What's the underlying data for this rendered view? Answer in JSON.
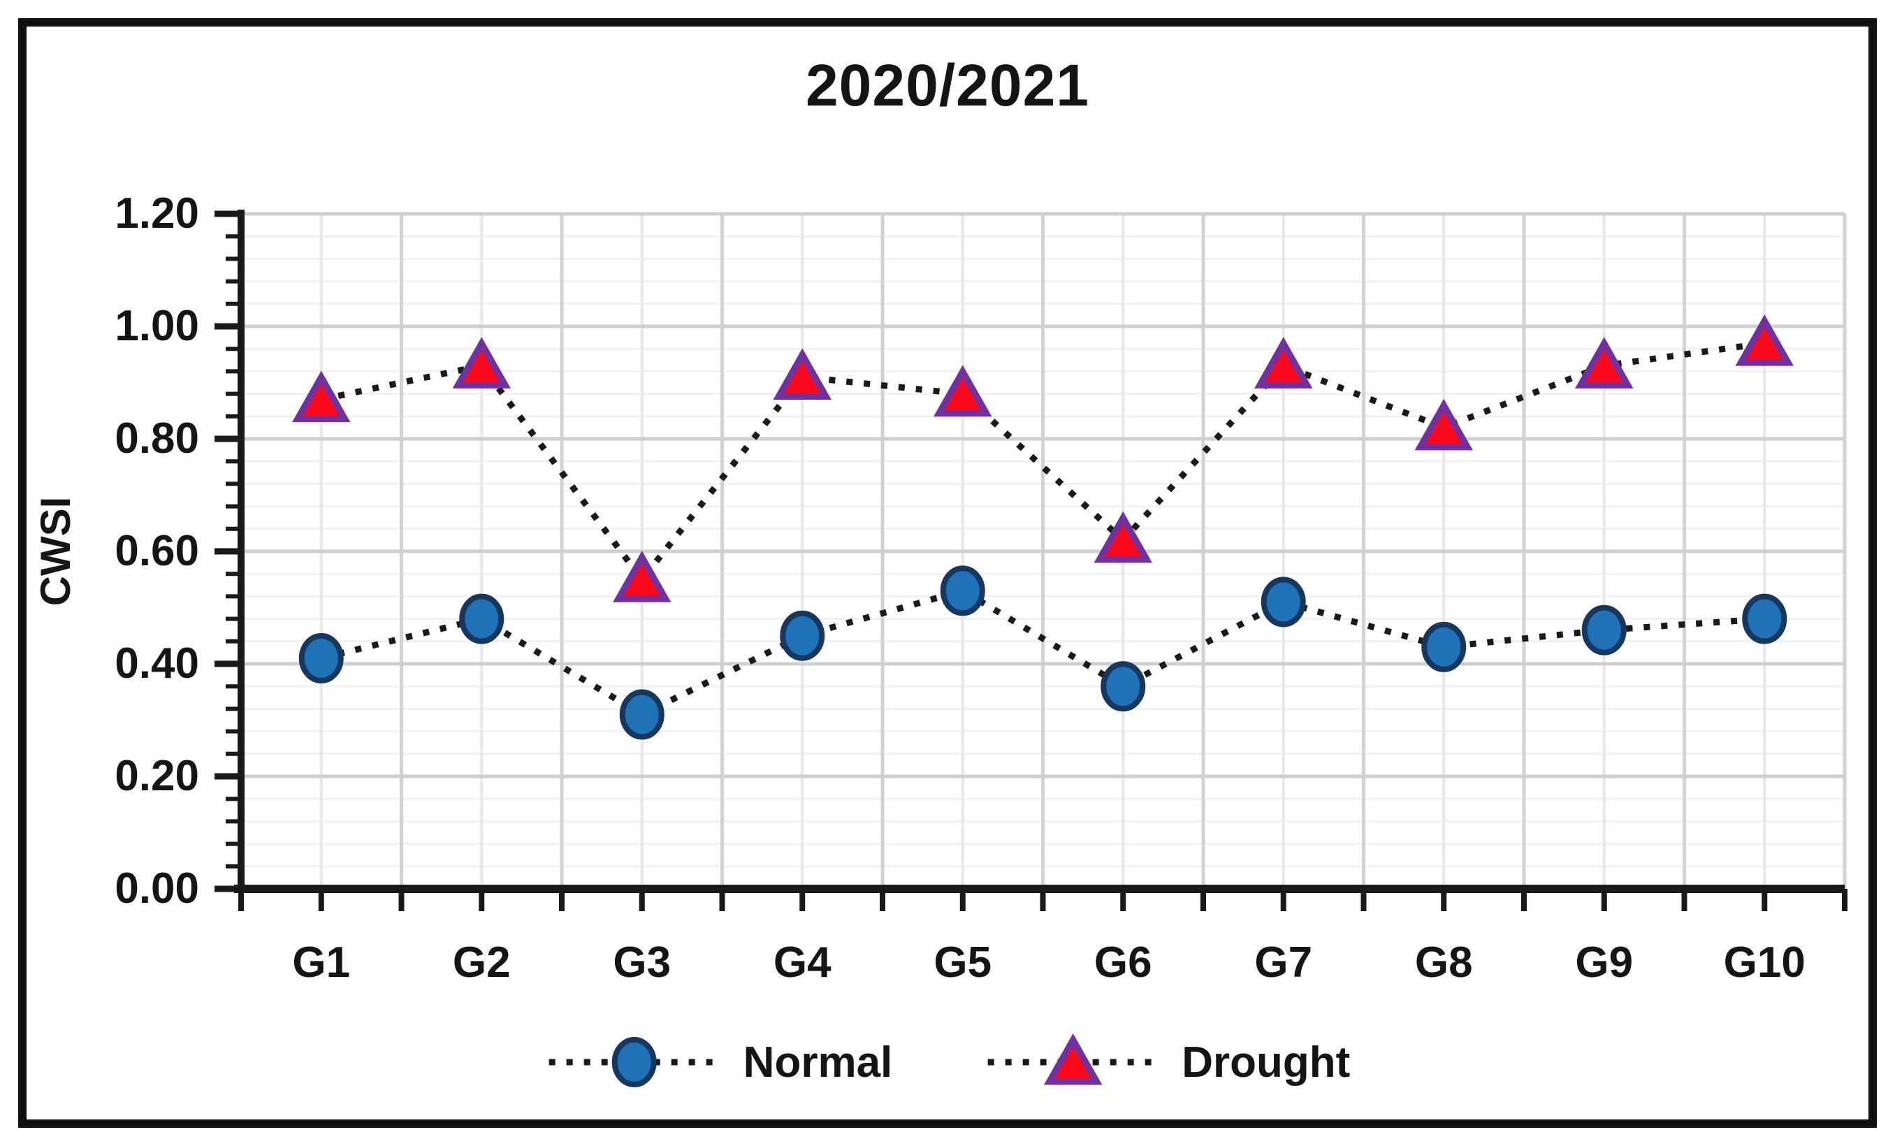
{
  "title": "2020/2021",
  "chart_data": {
    "type": "line",
    "title": "2020/2021",
    "categories": [
      "G1",
      "G2",
      "G3",
      "G4",
      "G5",
      "G6",
      "G7",
      "G8",
      "G9",
      "G10"
    ],
    "series": [
      {
        "name": "Normal",
        "marker": "circle",
        "values": [
          0.41,
          0.48,
          0.31,
          0.45,
          0.53,
          0.36,
          0.51,
          0.43,
          0.46,
          0.48
        ]
      },
      {
        "name": "Drought",
        "marker": "triangle",
        "values": [
          0.87,
          0.93,
          0.55,
          0.91,
          0.88,
          0.62,
          0.93,
          0.82,
          0.93,
          0.97
        ]
      }
    ],
    "ylabel": "CWSI",
    "xlabel": "",
    "ylim": [
      0,
      1.2
    ],
    "y_major_step": 0.2,
    "y_minor_step": 0.04,
    "y_tick_labels": [
      "0.00",
      "0.20",
      "0.40",
      "0.60",
      "0.80",
      "1.00",
      "1.20"
    ],
    "grid": "major+minor",
    "line_style": "dotted",
    "legend_position": "bottom"
  },
  "legend": {
    "items": [
      {
        "label": "Normal",
        "marker": "circle"
      },
      {
        "label": "Drought",
        "marker": "triangle"
      }
    ]
  },
  "colors": {
    "text": "#151515",
    "axis": "#1a1a1a",
    "dotted_line": "#1a1a1a",
    "grid_major_h": "#cfcfcf",
    "grid_minor_h": "#f1f1f1",
    "grid_major_v": "#d2d2d2",
    "grid_minor_v": "#e7e7e7",
    "normal_fill": "#1f72b6",
    "normal_stroke": "#17375e",
    "drought_fill": "#fb0a1e",
    "drought_stroke": "#7030a0",
    "frame_border": "#111111",
    "background": "#ffffff"
  }
}
